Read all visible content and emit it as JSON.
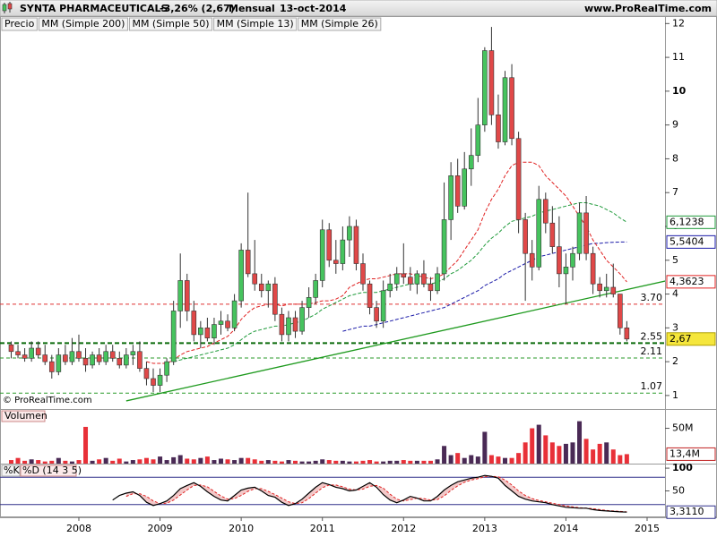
{
  "chart_data": {
    "type": "candlestick",
    "title": "SYNTA PHARMACEUTICALS",
    "change": "-3,26% (2,67)",
    "period": "Mensual",
    "date": "13-oct-2014",
    "site": "www.ProRealTime.com",
    "watermark": "© ProRealTime.com",
    "categories": [
      null,
      null,
      null,
      null,
      null,
      null,
      null,
      null,
      null,
      null,
      "2008",
      null,
      null,
      null,
      null,
      null,
      null,
      null,
      null,
      null,
      null,
      null,
      "2009",
      null,
      null,
      null,
      null,
      null,
      null,
      null,
      null,
      null,
      null,
      null,
      "2010",
      null,
      null,
      null,
      null,
      null,
      null,
      null,
      null,
      null,
      null,
      null,
      "2011",
      null,
      null,
      null,
      null,
      null,
      null,
      null,
      null,
      null,
      null,
      null,
      "2012",
      null,
      null,
      null,
      null,
      null,
      null,
      null,
      null,
      null,
      null,
      null,
      "2013",
      null,
      null,
      null,
      null,
      null,
      null,
      null,
      null,
      null,
      null,
      null,
      "2014",
      null,
      null,
      null,
      null,
      null,
      null,
      null,
      null,
      null,
      null,
      null,
      "2015"
    ],
    "legend": [
      {
        "name": "Precio",
        "color": "#000000"
      },
      {
        "name": "MM (Simple 200)",
        "color": "#000000"
      },
      {
        "name": "MM (Simple 50)",
        "color": "#1a1aa8"
      },
      {
        "name": "MM (Simple 13)",
        "color": "#e02020"
      },
      {
        "name": "MM (Simple 26)",
        "color": "#1e9a3a"
      }
    ],
    "up_color": "#46c35e",
    "down_color": "#e04848",
    "ohlc": [
      [
        2.5,
        2.6,
        2.1,
        2.3
      ],
      [
        2.3,
        2.5,
        2.1,
        2.2
      ],
      [
        2.2,
        2.4,
        2.0,
        2.1
      ],
      [
        2.1,
        2.6,
        2.0,
        2.4
      ],
      [
        2.4,
        2.6,
        2.1,
        2.2
      ],
      [
        2.2,
        2.5,
        1.9,
        2.0
      ],
      [
        2.0,
        2.2,
        1.5,
        1.7
      ],
      [
        1.7,
        2.4,
        1.6,
        2.2
      ],
      [
        2.2,
        2.5,
        1.9,
        2.0
      ],
      [
        2.0,
        2.7,
        1.9,
        2.3
      ],
      [
        2.3,
        2.8,
        2.0,
        2.1
      ],
      [
        2.1,
        2.4,
        1.7,
        1.9
      ],
      [
        1.9,
        2.3,
        1.8,
        2.2
      ],
      [
        2.2,
        2.4,
        1.9,
        2.0
      ],
      [
        2.0,
        2.5,
        1.9,
        2.3
      ],
      [
        2.3,
        2.5,
        2.0,
        2.1
      ],
      [
        2.1,
        2.3,
        1.8,
        1.9
      ],
      [
        1.9,
        2.4,
        1.8,
        2.2
      ],
      [
        2.2,
        2.5,
        1.9,
        2.3
      ],
      [
        2.3,
        2.6,
        1.7,
        1.8
      ],
      [
        1.8,
        2.0,
        1.3,
        1.5
      ],
      [
        1.5,
        1.8,
        1.1,
        1.3
      ],
      [
        1.3,
        1.8,
        1.1,
        1.6
      ],
      [
        1.6,
        2.1,
        1.4,
        2.0
      ],
      [
        2.0,
        3.8,
        1.9,
        3.5
      ],
      [
        3.5,
        5.2,
        3.0,
        4.4
      ],
      [
        4.4,
        4.6,
        3.2,
        3.5
      ],
      [
        3.5,
        3.8,
        2.6,
        2.8
      ],
      [
        2.8,
        3.2,
        2.4,
        3.0
      ],
      [
        3.0,
        3.3,
        2.6,
        2.7
      ],
      [
        2.7,
        3.3,
        2.5,
        3.1
      ],
      [
        3.1,
        3.5,
        2.8,
        3.2
      ],
      [
        3.2,
        3.4,
        2.9,
        3.0
      ],
      [
        3.0,
        4.0,
        2.9,
        3.8
      ],
      [
        3.8,
        5.5,
        3.6,
        5.3
      ],
      [
        5.3,
        7.0,
        4.5,
        4.6
      ],
      [
        4.6,
        5.6,
        4.1,
        4.3
      ],
      [
        4.3,
        4.6,
        3.9,
        4.1
      ],
      [
        4.1,
        4.4,
        3.6,
        4.3
      ],
      [
        4.3,
        4.5,
        3.2,
        3.4
      ],
      [
        3.4,
        3.6,
        2.6,
        2.8
      ],
      [
        2.8,
        3.5,
        2.6,
        3.3
      ],
      [
        3.3,
        3.5,
        2.7,
        2.9
      ],
      [
        2.9,
        3.8,
        2.8,
        3.6
      ],
      [
        3.6,
        4.2,
        3.3,
        3.9
      ],
      [
        3.9,
        4.6,
        3.7,
        4.4
      ],
      [
        4.4,
        6.2,
        4.2,
        5.9
      ],
      [
        5.9,
        6.1,
        4.8,
        5.0
      ],
      [
        5.0,
        5.6,
        4.6,
        4.9
      ],
      [
        4.9,
        6.0,
        4.7,
        5.6
      ],
      [
        5.6,
        6.3,
        5.1,
        6.0
      ],
      [
        6.0,
        6.2,
        4.7,
        4.9
      ],
      [
        4.9,
        5.2,
        4.1,
        4.3
      ],
      [
        4.3,
        4.4,
        3.4,
        3.6
      ],
      [
        3.6,
        3.8,
        3.0,
        3.2
      ],
      [
        3.2,
        4.4,
        3.0,
        4.1
      ],
      [
        4.1,
        4.6,
        3.9,
        4.3
      ],
      [
        4.3,
        4.8,
        4.1,
        4.6
      ],
      [
        4.6,
        5.5,
        4.3,
        4.5
      ],
      [
        4.5,
        4.8,
        4.1,
        4.3
      ],
      [
        4.3,
        4.7,
        4.0,
        4.6
      ],
      [
        4.6,
        5.0,
        4.2,
        4.3
      ],
      [
        4.3,
        4.5,
        3.8,
        4.1
      ],
      [
        4.1,
        4.8,
        4.0,
        4.6
      ],
      [
        4.6,
        7.3,
        4.4,
        6.2
      ],
      [
        6.2,
        7.9,
        5.6,
        7.5
      ],
      [
        7.5,
        8.0,
        6.4,
        6.6
      ],
      [
        6.6,
        8.2,
        6.5,
        7.7
      ],
      [
        7.7,
        8.9,
        7.2,
        8.1
      ],
      [
        8.1,
        9.8,
        7.9,
        9.0
      ],
      [
        9.0,
        11.3,
        8.8,
        11.2
      ],
      [
        11.2,
        11.9,
        9.0,
        9.3
      ],
      [
        9.3,
        9.9,
        8.3,
        8.5
      ],
      [
        8.5,
        10.6,
        8.4,
        10.4
      ],
      [
        10.4,
        10.8,
        8.4,
        8.6
      ],
      [
        8.6,
        8.8,
        5.8,
        6.2
      ],
      [
        6.2,
        6.4,
        3.8,
        5.2
      ],
      [
        5.2,
        5.6,
        4.4,
        4.8
      ],
      [
        4.8,
        7.2,
        4.7,
        6.8
      ],
      [
        6.8,
        7.0,
        5.8,
        6.1
      ],
      [
        6.1,
        6.6,
        5.2,
        5.4
      ],
      [
        5.4,
        6.3,
        4.2,
        4.6
      ],
      [
        4.6,
        5.2,
        3.7,
        4.8
      ],
      [
        4.8,
        5.4,
        4.4,
        5.2
      ],
      [
        5.2,
        6.7,
        5.0,
        6.4
      ],
      [
        6.4,
        6.9,
        5.0,
        5.2
      ],
      [
        5.2,
        5.4,
        4.0,
        4.3
      ],
      [
        4.3,
        4.5,
        3.9,
        4.1
      ],
      [
        4.1,
        4.6,
        3.9,
        4.2
      ],
      [
        4.2,
        4.9,
        3.9,
        4.0
      ],
      [
        4.0,
        4.0,
        2.8,
        3.0
      ],
      [
        3.0,
        3.2,
        2.6,
        2.67
      ],
      null,
      null,
      null
    ],
    "ylim": [
      0.6,
      12.22
    ],
    "yticks": [
      1,
      2,
      3,
      4,
      5,
      6,
      7,
      8,
      9,
      10,
      11,
      12
    ],
    "bold_tick": 10,
    "moving_averages": [
      {
        "color": "#1a1aa8",
        "values": [
          null,
          null,
          null,
          null,
          null,
          null,
          null,
          null,
          null,
          null,
          null,
          null,
          null,
          null,
          null,
          null,
          null,
          null,
          null,
          null,
          null,
          null,
          null,
          null,
          null,
          null,
          null,
          null,
          null,
          null,
          null,
          null,
          null,
          null,
          null,
          null,
          null,
          null,
          null,
          null,
          null,
          null,
          null,
          null,
          null,
          null,
          null,
          null,
          null,
          2.9,
          2.95,
          3.0,
          3.05,
          3.05,
          3.1,
          3.15,
          3.2,
          3.25,
          3.3,
          3.35,
          3.4,
          3.45,
          3.5,
          3.55,
          3.6,
          3.7,
          3.8,
          3.9,
          4.0,
          4.1,
          4.25,
          4.35,
          4.45,
          4.6,
          4.7,
          4.8,
          4.9,
          5.0,
          5.1,
          5.15,
          5.2,
          5.25,
          5.3,
          5.35,
          5.4,
          5.45,
          5.5,
          5.5,
          5.52,
          5.53,
          5.54,
          5.5404,
          null,
          null,
          null
        ],
        "last": {
          "value": 5.5404,
          "label": "5,5404"
        }
      },
      {
        "color": "#e02020",
        "values": [
          null,
          null,
          null,
          null,
          null,
          null,
          null,
          null,
          null,
          null,
          null,
          null,
          null,
          null,
          null,
          null,
          null,
          null,
          null,
          null,
          2.0,
          1.95,
          1.95,
          1.95,
          2.05,
          2.2,
          2.3,
          2.35,
          2.4,
          2.45,
          2.55,
          2.65,
          2.75,
          2.95,
          3.25,
          3.45,
          3.6,
          3.65,
          3.7,
          3.7,
          3.65,
          3.7,
          3.7,
          3.7,
          3.7,
          3.75,
          3.8,
          3.8,
          3.85,
          3.95,
          4.2,
          4.3,
          4.4,
          4.45,
          4.45,
          4.5,
          4.55,
          4.6,
          4.6,
          4.6,
          4.55,
          4.5,
          4.45,
          4.5,
          4.6,
          4.8,
          5.0,
          5.3,
          5.6,
          5.9,
          6.4,
          6.8,
          7.1,
          7.5,
          7.8,
          7.9,
          7.9,
          7.9,
          7.8,
          7.5,
          7.3,
          7.1,
          6.9,
          6.6,
          6.3,
          6.0,
          5.6,
          5.3,
          5.0,
          4.8,
          4.6,
          4.3623,
          null,
          null,
          null
        ],
        "last": {
          "value": 4.3623,
          "label": "4,3623"
        }
      },
      {
        "color": "#1e9a3a",
        "values": [
          null,
          null,
          null,
          null,
          null,
          null,
          null,
          null,
          null,
          null,
          null,
          null,
          null,
          null,
          null,
          null,
          null,
          null,
          null,
          null,
          null,
          null,
          null,
          null,
          2.0,
          2.05,
          2.1,
          2.15,
          2.2,
          2.25,
          2.3,
          2.35,
          2.4,
          2.5,
          2.65,
          2.8,
          2.9,
          2.95,
          3.0,
          3.05,
          3.05,
          3.1,
          3.15,
          3.2,
          3.3,
          3.4,
          3.55,
          3.65,
          3.75,
          3.85,
          3.95,
          4.0,
          4.05,
          4.05,
          4.05,
          4.1,
          4.15,
          4.2,
          4.25,
          4.3,
          4.3,
          4.3,
          4.3,
          4.35,
          4.45,
          4.6,
          4.7,
          4.85,
          5.0,
          5.2,
          5.45,
          5.65,
          5.8,
          6.0,
          6.15,
          6.2,
          6.25,
          6.3,
          6.4,
          6.45,
          6.5,
          6.55,
          6.6,
          6.65,
          6.7,
          6.7,
          6.65,
          6.6,
          6.5,
          6.4,
          6.25,
          6.1238,
          null,
          null,
          null
        ],
        "last": {
          "value": 6.1238,
          "label": "6,1238"
        }
      }
    ],
    "last_price": {
      "value": 2.67,
      "label": "2,67",
      "color": "#f5e63c"
    },
    "levels": [
      {
        "value": 3.7,
        "label": "3.70",
        "color": "#e03030"
      },
      {
        "value": 2.55,
        "color": "#0b6b0b"
      },
      {
        "value": 2.11,
        "color": "#2a9a2a"
      },
      {
        "value": 1.07,
        "color": "#2a9a2a"
      }
    ],
    "trendline": {
      "color": "#1e9a1e",
      "from": [
        17,
        0.84
      ],
      "to": [
        97,
        4.4
      ]
    },
    "volume": {
      "title": "Volumen",
      "values": [
        5,
        8,
        4,
        6,
        5,
        3,
        4,
        8,
        4,
        3,
        5,
        52,
        4,
        6,
        8,
        4,
        7,
        3,
        5,
        6,
        8,
        6,
        10,
        5,
        9,
        12,
        7,
        6,
        8,
        10,
        5,
        7,
        6,
        5,
        8,
        8,
        6,
        4,
        5,
        4,
        3,
        5,
        4,
        3,
        3,
        4,
        6,
        5,
        4,
        4,
        3,
        3,
        4,
        5,
        3,
        3,
        4,
        4,
        5,
        4,
        4,
        4,
        4,
        6,
        25,
        12,
        15,
        8,
        12,
        10,
        45,
        12,
        10,
        8,
        8,
        15,
        30,
        50,
        55,
        40,
        30,
        25,
        28,
        30,
        60,
        35,
        20,
        28,
        30,
        20,
        12,
        13.4,
        null,
        null,
        null
      ],
      "up_color": "#4a2a55",
      "down_color": "#e83038",
      "ylim": [
        0,
        76
      ],
      "yticks": [
        {
          "value": 50,
          "label": "50M"
        }
      ],
      "last": {
        "value": 13.4,
        "label": "13,4M"
      }
    },
    "stochastic": {
      "k_name": "%K",
      "d_name": "%D (14 3 5)",
      "k": [
        null,
        null,
        null,
        null,
        null,
        null,
        null,
        null,
        null,
        null,
        null,
        null,
        null,
        null,
        null,
        30,
        40,
        45,
        48,
        40,
        25,
        18,
        22,
        28,
        40,
        55,
        62,
        68,
        60,
        48,
        38,
        30,
        28,
        40,
        52,
        56,
        58,
        50,
        40,
        36,
        25,
        18,
        22,
        32,
        45,
        58,
        68,
        64,
        58,
        55,
        50,
        52,
        60,
        68,
        58,
        42,
        30,
        24,
        30,
        38,
        34,
        28,
        28,
        38,
        52,
        62,
        70,
        74,
        78,
        80,
        84,
        82,
        78,
        62,
        50,
        38,
        32,
        28,
        26,
        24,
        20,
        17,
        14,
        13,
        12,
        12,
        9,
        7,
        6,
        5,
        4,
        3.311,
        null,
        null,
        null
      ],
      "d": [
        null,
        null,
        null,
        null,
        null,
        null,
        null,
        null,
        null,
        null,
        null,
        null,
        null,
        null,
        null,
        null,
        null,
        38,
        44,
        44,
        38,
        28,
        22,
        23,
        30,
        41,
        52,
        62,
        63,
        59,
        49,
        39,
        32,
        33,
        40,
        49,
        55,
        55,
        49,
        42,
        34,
        26,
        22,
        24,
        33,
        45,
        57,
        63,
        63,
        59,
        54,
        52,
        54,
        60,
        62,
        56,
        43,
        32,
        28,
        31,
        34,
        33,
        30,
        31,
        39,
        51,
        61,
        69,
        74,
        77,
        81,
        82,
        81,
        74,
        63,
        50,
        40,
        33,
        29,
        26,
        23,
        20,
        17,
        15,
        13,
        12,
        11,
        9,
        7,
        6,
        5,
        4,
        null,
        null,
        null
      ],
      "k_color": "#000000",
      "d_color": "#e02020",
      "fill": "#f0bcbc",
      "ylim": [
        -8,
        108
      ],
      "yticks": [
        100,
        50
      ],
      "bold_tick": 100,
      "levels": [
        20,
        80
      ],
      "last": {
        "value": 3.311,
        "label": "3,3110"
      }
    }
  }
}
